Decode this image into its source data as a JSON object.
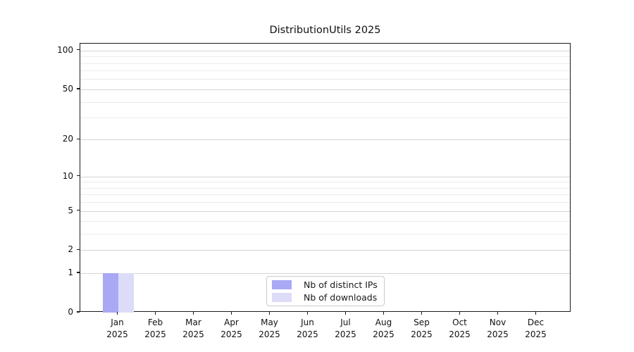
{
  "figure": {
    "background": "#ffffff",
    "text_color": "#111111"
  },
  "chart_data": {
    "type": "bar",
    "title": "DistributionUtils 2025",
    "xlabel": "",
    "ylabel": "",
    "yscale": "log1p",
    "ylim": [
      0,
      113
    ],
    "grid": true,
    "x_tick_labels": [
      {
        "month": "Jan",
        "year": "2025"
      },
      {
        "month": "Feb",
        "year": "2025"
      },
      {
        "month": "Mar",
        "year": "2025"
      },
      {
        "month": "Apr",
        "year": "2025"
      },
      {
        "month": "May",
        "year": "2025"
      },
      {
        "month": "Jun",
        "year": "2025"
      },
      {
        "month": "Jul",
        "year": "2025"
      },
      {
        "month": "Aug",
        "year": "2025"
      },
      {
        "month": "Sep",
        "year": "2025"
      },
      {
        "month": "Oct",
        "year": "2025"
      },
      {
        "month": "Nov",
        "year": "2025"
      },
      {
        "month": "Dec",
        "year": "2025"
      }
    ],
    "y_major_ticks": [
      0,
      1,
      2,
      5,
      10,
      20,
      50,
      100
    ],
    "y_minor_gridlines": [
      3,
      4,
      6,
      7,
      8,
      9,
      30,
      40,
      60,
      70,
      80,
      90
    ],
    "series": [
      {
        "name": "Nb of distinct IPs",
        "color": "#a8a8f5",
        "values": [
          1,
          0,
          0,
          0,
          0,
          0,
          0,
          0,
          0,
          0,
          0,
          0
        ]
      },
      {
        "name": "Nb of downloads",
        "color": "#dcdcf8",
        "values": [
          1,
          0,
          0,
          0,
          0,
          0,
          0,
          0,
          0,
          0,
          0,
          0
        ]
      }
    ],
    "legend_position": "lower center",
    "colors": {
      "major_grid": "#d4d4d4",
      "minor_grid": "#ebebeb",
      "spine": "#1a1a1a"
    }
  }
}
